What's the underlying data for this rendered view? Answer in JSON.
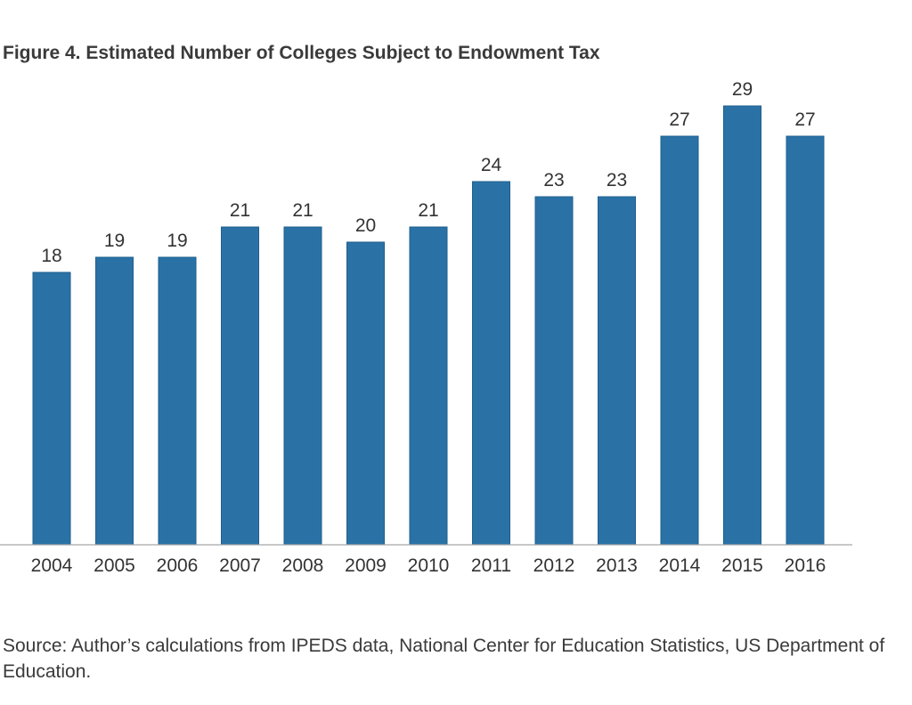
{
  "title": "Figure 4. Estimated Number of Colleges Subject to Endowment Tax",
  "source_note": "Source:  Author’s calculations from IPEDS data, National Center for Education Statistics, US Department of Education.",
  "colors": {
    "bar": "#2a72a6",
    "bar_edge": "#1f5f8e",
    "axis": "#a6a6a6",
    "text": "#333333"
  },
  "chart_data": {
    "type": "bar",
    "title": "Figure 4. Estimated Number of Colleges Subject to Endowment Tax",
    "xlabel": "",
    "ylabel": "",
    "categories": [
      "2004",
      "2005",
      "2006",
      "2007",
      "2008",
      "2009",
      "2010",
      "2011",
      "2012",
      "2013",
      "2014",
      "2015",
      "2016"
    ],
    "values": [
      18,
      19,
      19,
      21,
      21,
      20,
      21,
      24,
      23,
      23,
      27,
      29,
      27
    ],
    "ylim": [
      0,
      29
    ],
    "data_labels": true,
    "y_axis_visible": false,
    "grid": false,
    "legend": "none"
  }
}
